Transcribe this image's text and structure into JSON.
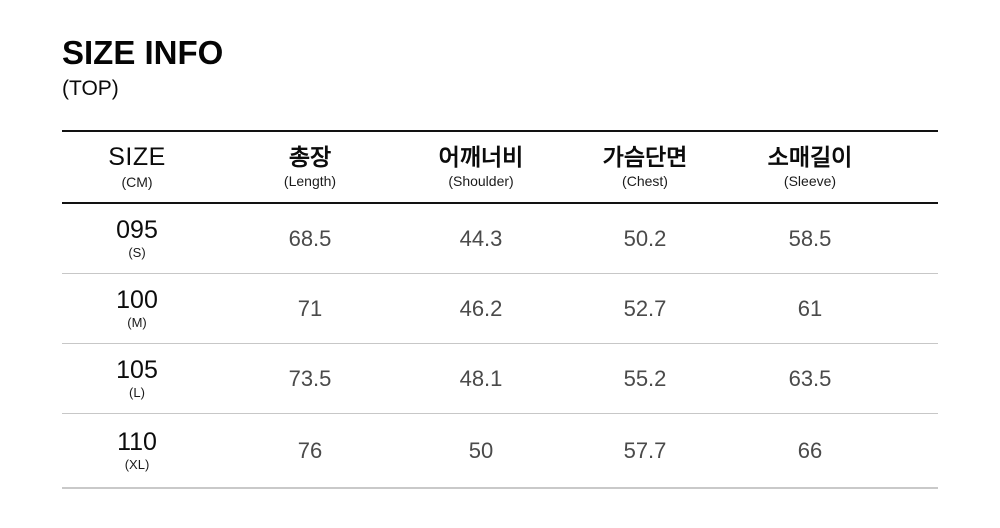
{
  "header": {
    "title": "SIZE INFO",
    "subtitle": "(TOP)"
  },
  "table": {
    "columns": [
      {
        "label": "SIZE",
        "sublabel": "(CM)"
      },
      {
        "label": "총장",
        "sublabel": "(Length)"
      },
      {
        "label": "어깨너비",
        "sublabel": "(Shoulder)"
      },
      {
        "label": "가슴단면",
        "sublabel": "(Chest)"
      },
      {
        "label": "소매길이",
        "sublabel": "(Sleeve)"
      }
    ],
    "rows": [
      {
        "size": "095",
        "size_sub": "(S)",
        "values": [
          "68.5",
          "44.3",
          "50.2",
          "58.5"
        ]
      },
      {
        "size": "100",
        "size_sub": "(M)",
        "values": [
          "71",
          "46.2",
          "52.7",
          "61"
        ]
      },
      {
        "size": "105",
        "size_sub": "(L)",
        "values": [
          "73.5",
          "48.1",
          "55.2",
          "63.5"
        ]
      },
      {
        "size": "110",
        "size_sub": "(XL)",
        "values": [
          "76",
          "50",
          "57.7",
          "66"
        ]
      }
    ]
  },
  "colors": {
    "heavy_rule": "#121212",
    "light_rule": "#c7c7c7",
    "value_text": "#4a4a4a",
    "label_text": "#0c0c0c",
    "background": "#ffffff"
  },
  "chart_data": {
    "type": "table",
    "title": "SIZE INFO",
    "subtitle": "(TOP)",
    "unit": "CM",
    "columns": [
      "SIZE (CM)",
      "총장 (Length)",
      "어깨너비 (Shoulder)",
      "가슴단면 (Chest)",
      "소매길이 (Sleeve)"
    ],
    "rows": [
      [
        "095 (S)",
        68.5,
        44.3,
        50.2,
        58.5
      ],
      [
        "100 (M)",
        71,
        46.2,
        52.7,
        61
      ],
      [
        "105 (L)",
        73.5,
        48.1,
        55.2,
        63.5
      ],
      [
        "110 (XL)",
        76,
        50,
        57.7,
        66
      ]
    ]
  }
}
